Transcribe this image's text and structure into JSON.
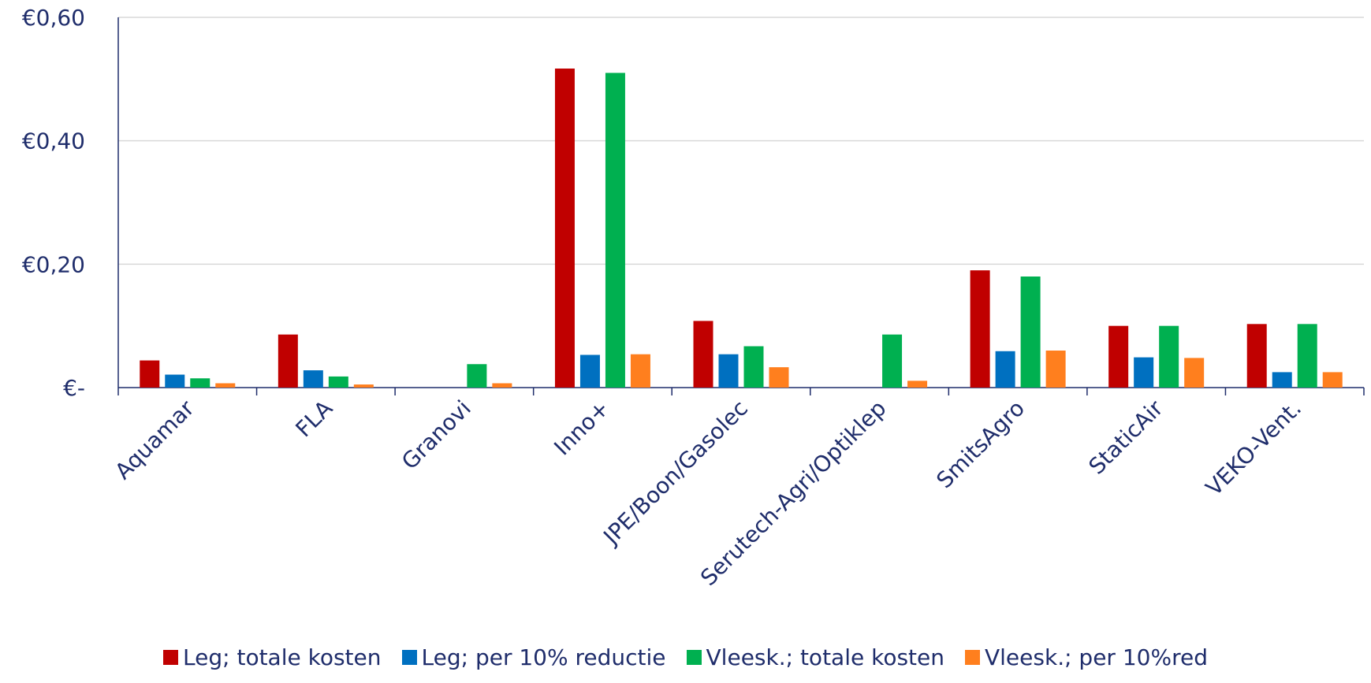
{
  "chart_data": {
    "type": "bar",
    "categories": [
      "Aquamar",
      "FLA",
      "Granovi",
      "Inno+",
      "JPE/Boon/Gasolec",
      "Serutech-Agri/Optiklep",
      "SmitsAgro",
      "StaticAir",
      "VEKO-Vent."
    ],
    "series": [
      {
        "name": "Leg; totale kosten",
        "color": "#c00000",
        "values": [
          0.044,
          0.086,
          null,
          0.517,
          0.108,
          null,
          0.19,
          0.1,
          0.103
        ]
      },
      {
        "name": "Leg; per 10% reductie",
        "color": "#0070c0",
        "values": [
          0.021,
          0.028,
          null,
          0.053,
          0.054,
          null,
          0.059,
          0.049,
          0.025
        ]
      },
      {
        "name": "Vleesk.; totale kosten",
        "color": "#00b050",
        "values": [
          0.015,
          0.018,
          0.038,
          0.51,
          0.067,
          0.086,
          0.18,
          0.1,
          0.103
        ]
      },
      {
        "name": "Vleesk.; per 10%red",
        "color": "#ff7f1e",
        "values": [
          0.007,
          0.005,
          0.007,
          0.054,
          0.033,
          0.011,
          0.06,
          0.048,
          0.025
        ]
      }
    ],
    "yticks": [
      0,
      0.2,
      0.4,
      0.6
    ],
    "ytick_labels": [
      "€-",
      "€0,20",
      "€0,40",
      "€0,60"
    ],
    "ylim": [
      0,
      0.6
    ],
    "grid": true,
    "legend_position": "bottom"
  }
}
